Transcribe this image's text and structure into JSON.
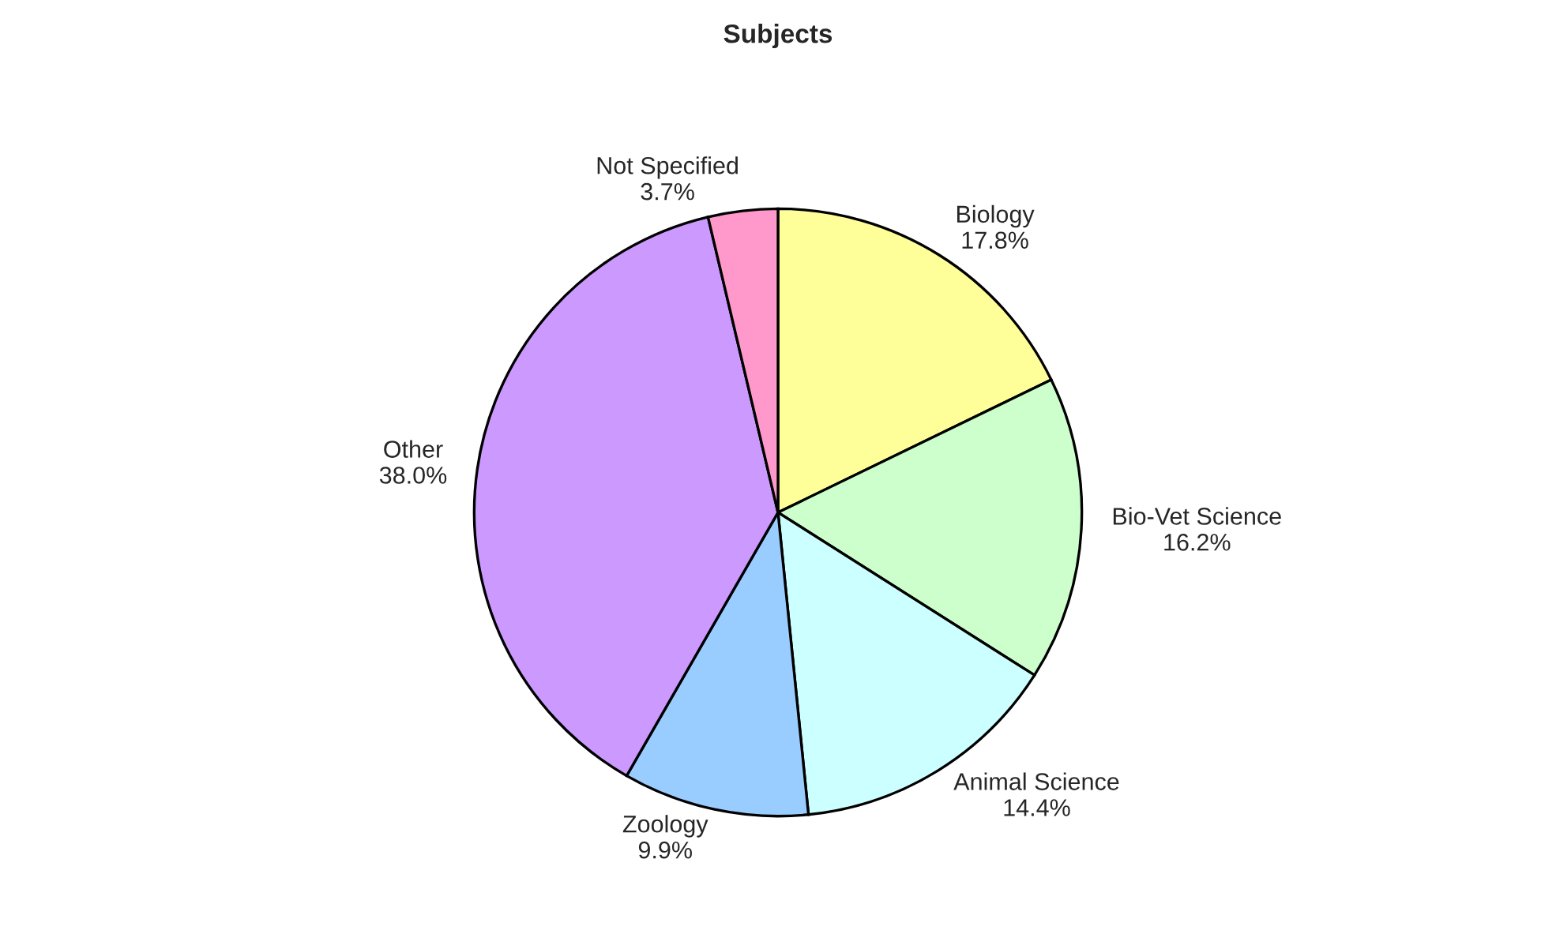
{
  "chart_data": {
    "type": "pie",
    "title": "Subjects",
    "categories": [
      "Biology",
      "Bio-Vet Science",
      "Animal Science",
      "Zoology",
      "Other",
      "Not Specified"
    ],
    "values": [
      17.8,
      16.2,
      14.4,
      9.9,
      38.0,
      3.7
    ],
    "value_labels": [
      "17.8%",
      "16.2%",
      "14.4%",
      "9.9%",
      "38.0%",
      "3.7%"
    ],
    "colors": [
      "#ffff99",
      "#ccffcc",
      "#ccffff",
      "#99ccff",
      "#cc99ff",
      "#ff99cc"
    ]
  }
}
